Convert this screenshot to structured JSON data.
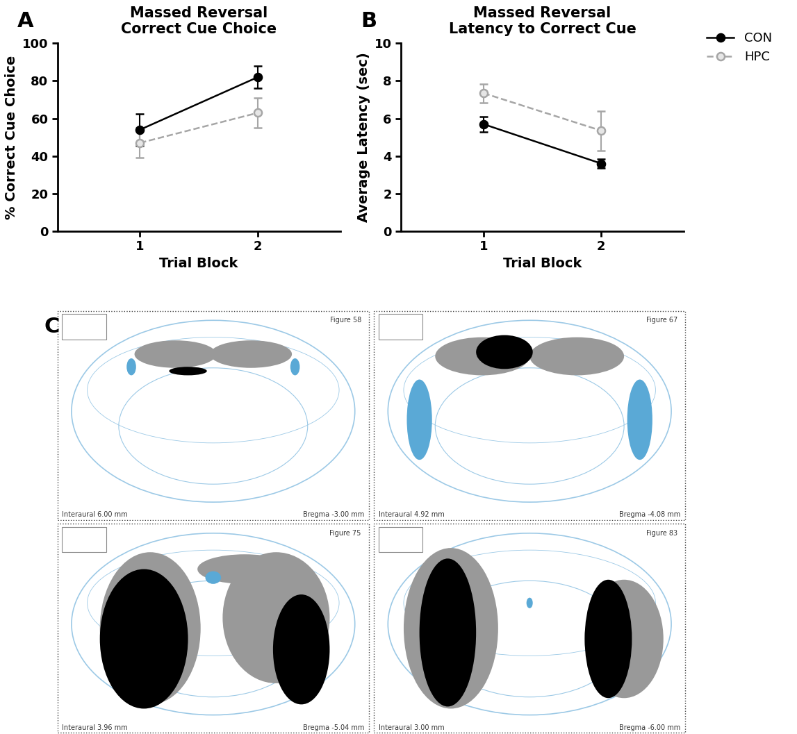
{
  "chart_data": [
    {
      "panel": "A",
      "type": "line",
      "title": "Massed Reversal\nCorrect Cue Choice",
      "x_label": "Trial Block",
      "y_label": "% Correct Cue Choice",
      "x": [
        1,
        2
      ],
      "xlim": [
        0.3,
        2.7
      ],
      "xticks": [
        1,
        2
      ],
      "ylim": [
        0,
        100
      ],
      "yticks": [
        0,
        20,
        40,
        60,
        80,
        100
      ],
      "series": [
        {
          "name": "CON",
          "color": "#000000",
          "marker": "o",
          "line_style": "solid",
          "values": [
            54,
            82
          ],
          "errors": [
            8.5,
            6
          ]
        },
        {
          "name": "HPC",
          "color": "#a6a6a6",
          "marker": "o",
          "line_style": "dashed",
          "values": [
            47,
            63
          ],
          "errors": [
            8,
            8
          ]
        }
      ]
    },
    {
      "panel": "B",
      "type": "line",
      "title": "Massed Reversal\nLatency to Correct Cue",
      "x_label": "Trial Block",
      "y_label": "Average Latency (sec)",
      "x": [
        1,
        2
      ],
      "xlim": [
        0.3,
        2.7
      ],
      "xticks": [
        1,
        2
      ],
      "ylim": [
        0,
        10
      ],
      "yticks": [
        0,
        2,
        4,
        6,
        8,
        10
      ],
      "legend": "upper left",
      "series": [
        {
          "name": "CON",
          "color": "#000000",
          "marker": "o",
          "line_style": "solid",
          "values": [
            5.7,
            3.6
          ],
          "errors": [
            0.4,
            0.25
          ]
        },
        {
          "name": "HPC",
          "color": "#a6a6a6",
          "marker": "o",
          "line_style": "dashed",
          "values": [
            7.35,
            5.35
          ],
          "errors": [
            0.5,
            1.05
          ]
        }
      ]
    }
  ],
  "atlas_panel": {
    "panel": "C",
    "sections": [
      {
        "figure": "Figure 58",
        "interaural": "Interaural 6.00 mm",
        "bregma": "Bregma -3.00 mm"
      },
      {
        "figure": "Figure 67",
        "interaural": "Interaural 4.92 mm",
        "bregma": "Bregma -4.08 mm"
      },
      {
        "figure": "Figure 75",
        "interaural": "Interaural 3.96 mm",
        "bregma": "Bregma -5.04 mm"
      },
      {
        "figure": "Figure 83",
        "interaural": "Interaural 3.00 mm",
        "bregma": "Bregma -6.00 mm"
      }
    ]
  }
}
